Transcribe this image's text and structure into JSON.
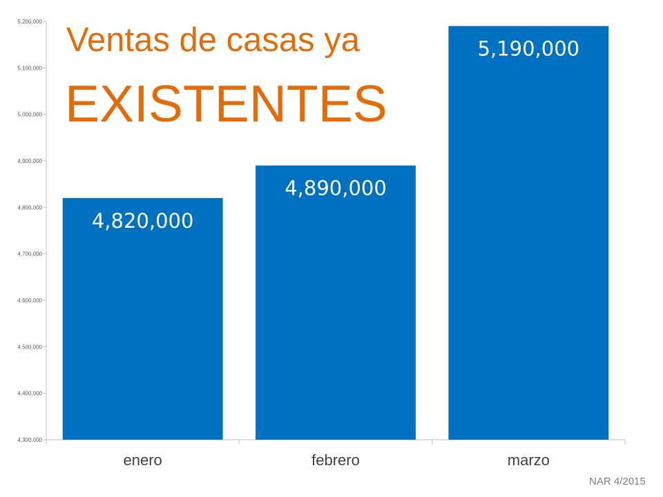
{
  "title": {
    "line1": "Ventas de casas ya",
    "line2": "EXISTENTES"
  },
  "source": "NAR 4/2015",
  "colors": {
    "bar": "#0070C0",
    "title": "#E36C0A",
    "axis": "#BFBFBF",
    "source": "#7F7F7F"
  },
  "chart_data": {
    "type": "bar",
    "title": "Ventas de casas ya EXISTENTES",
    "xlabel": "",
    "ylabel": "",
    "categories": [
      "enero",
      "febrero",
      "marzo"
    ],
    "values": [
      4820000,
      4890000,
      5190000
    ],
    "data_labels": [
      "4,820,000",
      "4,890,000",
      "5,190,000"
    ],
    "ylim": [
      4300000,
      5200000
    ],
    "yticks": [
      4300000,
      4400000,
      4500000,
      4600000,
      4700000,
      4800000,
      4900000,
      5000000,
      5100000,
      5200000
    ],
    "ytick_labels": [
      "4,300,000",
      "4,400,000",
      "4,500,000",
      "4,600,000",
      "4,700,000",
      "4,800,000",
      "4,900,000",
      "5,000,000",
      "5,100,000",
      "5,200,000"
    ],
    "grid": false,
    "legend": "none"
  }
}
